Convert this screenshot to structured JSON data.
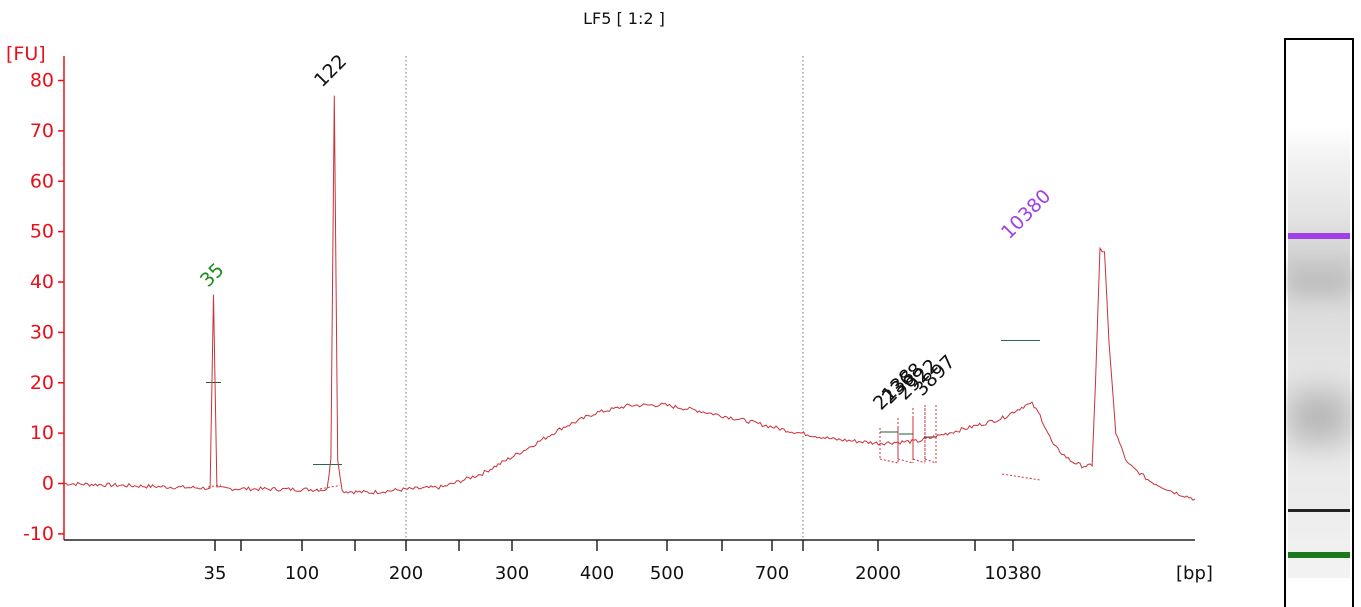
{
  "chart_data": {
    "type": "line",
    "title": "LF5  [ 1:2 ]",
    "ylabel": "[FU]",
    "xlabel": "[bp]",
    "ylim": [
      -11,
      84
    ],
    "y_ticks": [
      "80",
      "70",
      "60",
      "50",
      "40",
      "30",
      "20",
      "10",
      "0",
      "-10"
    ],
    "x_tick_labels": [
      "35",
      "100",
      "200",
      "300",
      "400",
      "500",
      "700",
      "2000",
      "10380"
    ],
    "x_unlabeled_ticks": 6,
    "x_scale": "electropherogram (non-linear)",
    "grid": false,
    "dotted_vertical_lines_at": [
      "200",
      "1000"
    ],
    "series": [
      {
        "color": "#c8323a",
        "x": [
          "baseline-start",
          "35",
          "122",
          "~400",
          "~1000",
          "2138",
          "2368",
          "2922",
          "3897",
          "10380",
          "end"
        ],
        "points_fu": [
          [
            0,
            0.0
          ],
          [
            0.04,
            -0.3
          ],
          [
            0.08,
            -0.6
          ],
          [
            0.1248,
            -0.9
          ],
          [
            0.1292,
            -0.9
          ],
          [
            0.1322,
            37.5
          ],
          [
            0.1352,
            -0.9
          ],
          [
            0.14,
            -1.0
          ],
          [
            0.22,
            -1.2
          ],
          [
            0.2326,
            -1.2
          ],
          [
            0.236,
            5.0
          ],
          [
            0.239,
            77.0
          ],
          [
            0.242,
            5.0
          ],
          [
            0.246,
            -1.5
          ],
          [
            0.27,
            -1.8
          ],
          [
            0.3,
            -1.2
          ],
          [
            0.335,
            -0.7
          ],
          [
            0.37,
            2.0
          ],
          [
            0.41,
            7.0
          ],
          [
            0.44,
            11.0
          ],
          [
            0.47,
            14.0
          ],
          [
            0.5,
            15.5
          ],
          [
            0.53,
            15.6
          ],
          [
            0.56,
            14.5
          ],
          [
            0.6,
            12.6
          ],
          [
            0.64,
            10.5
          ],
          [
            0.68,
            8.8
          ],
          [
            0.72,
            8.0
          ],
          [
            0.755,
            8.4
          ],
          [
            0.79,
            10.5
          ],
          [
            0.815,
            12.0
          ],
          [
            0.83,
            13.0
          ],
          [
            0.84,
            14.3
          ],
          [
            0.85,
            15.5
          ],
          [
            0.856,
            15.8
          ],
          [
            0.863,
            13.5
          ],
          [
            0.875,
            7.5
          ],
          [
            0.89,
            4.5
          ],
          [
            0.9,
            3.5
          ],
          [
            0.909,
            3.5
          ],
          [
            0.912,
            20.0
          ],
          [
            0.916,
            46.5
          ],
          [
            0.92,
            46.0
          ],
          [
            0.924,
            28.0
          ],
          [
            0.93,
            10.0
          ],
          [
            0.94,
            4.0
          ],
          [
            0.96,
            0.5
          ],
          [
            0.98,
            -1.6
          ],
          [
            1.0,
            -3.1
          ]
        ]
      }
    ],
    "peak_labels": [
      {
        "text": "35",
        "color": "#1a8a1a"
      },
      {
        "text": "122",
        "color": "#111111"
      },
      {
        "text": "10380",
        "color": "#a040e8"
      },
      {
        "text": "2138",
        "color": "#111111"
      },
      {
        "text": "2368",
        "color": "#111111"
      },
      {
        "text": "2922",
        "color": "#111111"
      },
      {
        "text": "3897",
        "color": "#111111"
      }
    ],
    "gel_lane": {
      "bands": [
        {
          "name": "upper-marker",
          "color": "#a040e8",
          "fu": 55
        },
        {
          "name": "sample-smear-1",
          "color": "#bdbdbd",
          "fu": 28
        },
        {
          "name": "sample-smear-2",
          "color": "#b0b0b0",
          "fu": 30
        },
        {
          "name": "main-fragment",
          "color": "#222222",
          "fu": 80
        },
        {
          "name": "lower-marker",
          "color": "#1a7a1a",
          "fu": 40
        }
      ]
    }
  }
}
